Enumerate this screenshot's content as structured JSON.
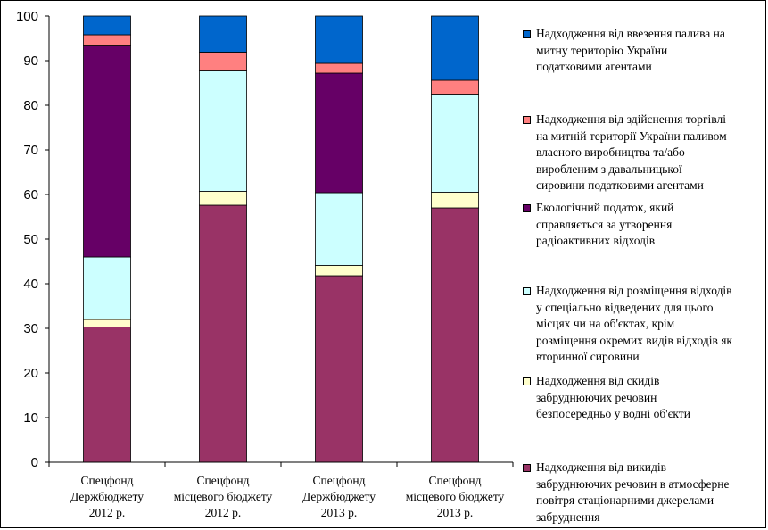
{
  "chart_data": {
    "type": "bar",
    "stacked": true,
    "categories": [
      "Спецфонд\nДержбюджету\n2012 р.",
      "Спецфонд\nмісцевого бюджету\n2012 р.",
      "Спецфонд\nДержбюджету\n2013 р.",
      "Спецфонд\nмісцевого бюджету\n2013 р."
    ],
    "yticks": [
      "0",
      "10",
      "20",
      "30",
      "40",
      "50",
      "60",
      "70",
      "80",
      "90",
      "100"
    ],
    "ylim": [
      0,
      100
    ],
    "grid": false,
    "legend_position": "right",
    "series": [
      {
        "name": "Надходження від викидів забруднюючих речовин в атмосферне повітря стаціонарними джерелами забруднення",
        "color": "#993366",
        "values": [
          30.3,
          57.6,
          41.8,
          57.0
        ]
      },
      {
        "name": "Надходження від скидів забруднюючих речовин безпосередньо у водні об'єкти",
        "color": "#FFFFCC",
        "values": [
          1.7,
          3.1,
          2.3,
          3.5
        ]
      },
      {
        "name": "Надходження від розміщення відходів у спеціально відведених для цього місцях чи на об'єктах, крім розміщення окремих видів відходів як вторинної сировини",
        "color": "#CCFFFF",
        "values": [
          14.0,
          27.0,
          16.3,
          22.0
        ]
      },
      {
        "name": "Екологічний податок, який справляється за утворення радіоактивних відходів",
        "color": "#660066",
        "values": [
          47.5,
          0.0,
          26.8,
          0.0
        ]
      },
      {
        "name": "Надходження від здійснення торгівлі на митній території України паливом власного виробництва та/або виробленим з давальницької сировини податковими агентами",
        "color": "#FF8080",
        "values": [
          2.3,
          4.2,
          2.2,
          3.1
        ]
      },
      {
        "name": "Надходження від ввезення палива на митну територію України податковими агентами",
        "color": "#0066CC",
        "values": [
          4.2,
          8.1,
          10.6,
          14.4
        ]
      }
    ]
  },
  "legend": {
    "items": [
      {
        "label": "Надходження від ввезення палива на\nмитну територію України\nподатковими агентами",
        "color": "#0066CC"
      },
      {
        "label": "Надходження від здійснення торгівлі\nна митній території України паливом\nвласного виробництва та/або\nвиробленим з давальницької\nсировини податковими агентами",
        "color": "#FF8080"
      },
      {
        "label": "Екологічний податок, який\nсправляється за утворення\nрадіоактивних відходів",
        "color": "#660066"
      },
      {
        "label": "Надходження від розміщення відходів\nу спеціально відведених для цього\nмісцях чи на об'єктах, крім\nрозміщення окремих видів відходів як\nвторинної сировини",
        "color": "#CCFFFF"
      },
      {
        "label": "Надходження від скидів\nзабруднюючих речовин\nбезпосередньо у водні об'єкти",
        "color": "#FFFFCC"
      },
      {
        "label": "Надходження від викидів\nзабруднюючих речовин в атмосферне\nповітря стаціонарними джерелами\nзабруднення",
        "color": "#993366"
      }
    ]
  }
}
